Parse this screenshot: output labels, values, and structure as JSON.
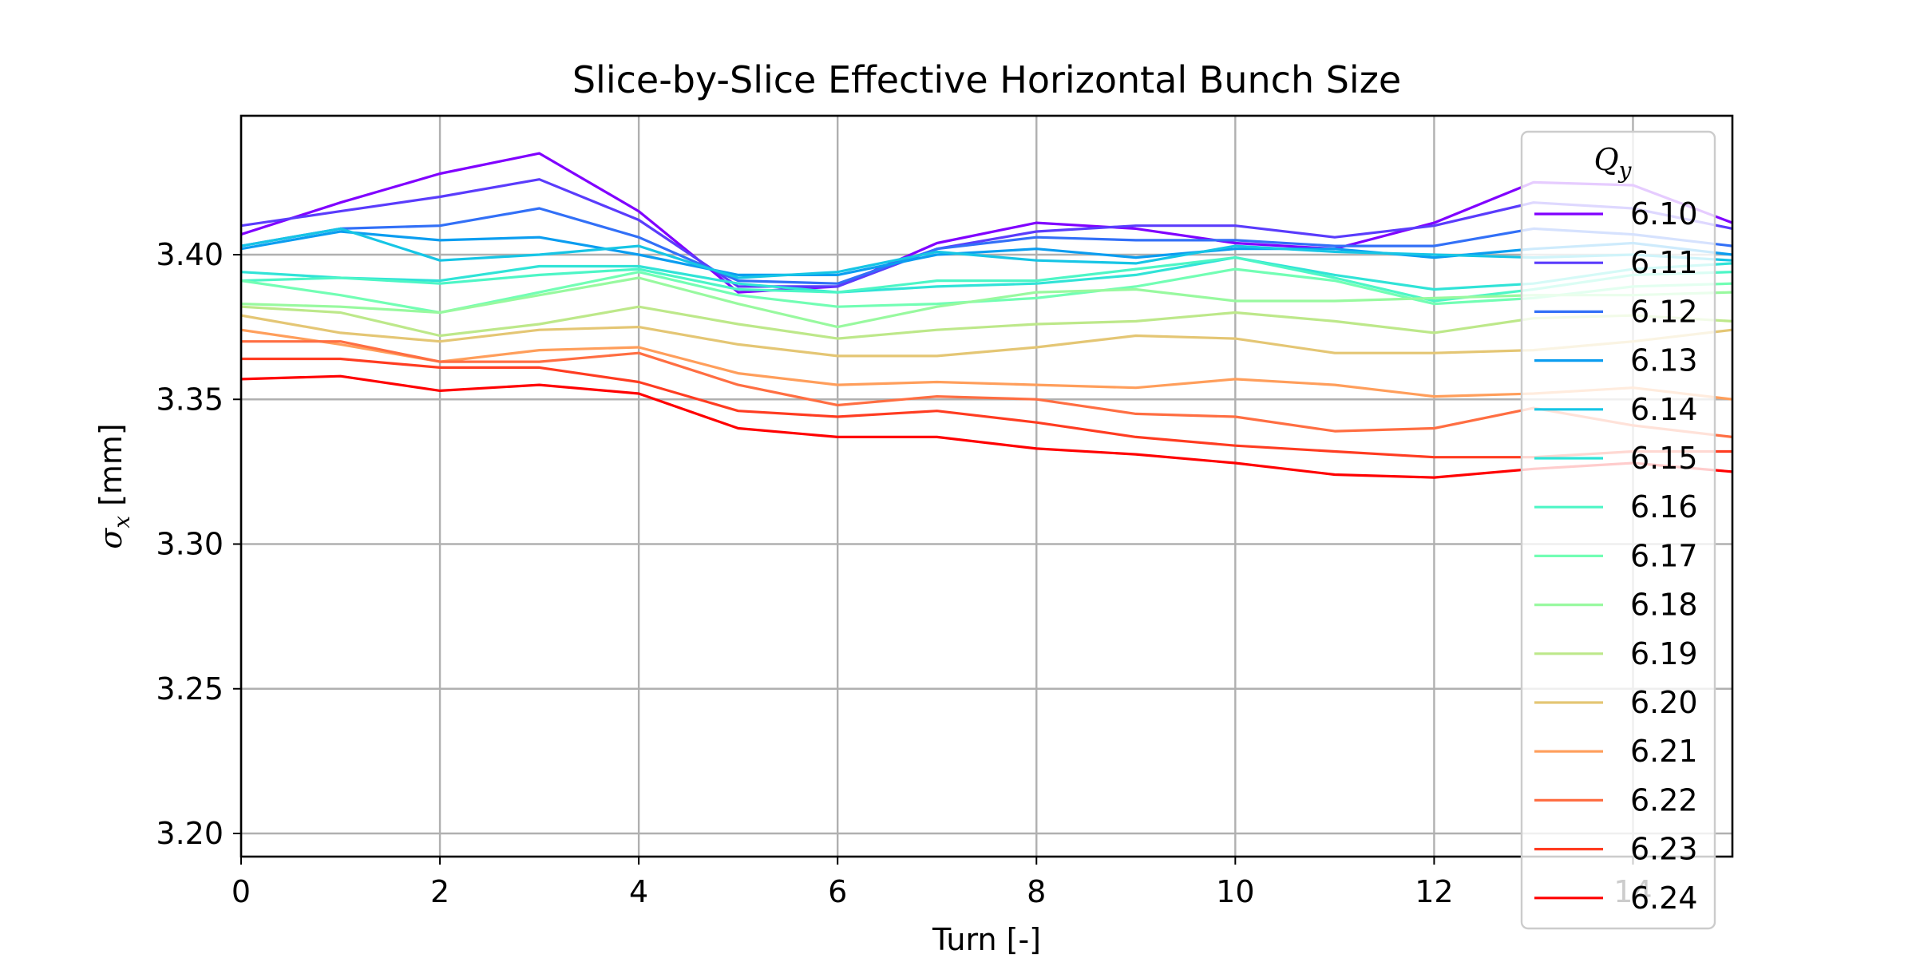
{
  "chart_data": {
    "type": "line",
    "title": "Slice-by-Slice Effective Horizontal Bunch Size",
    "xlabel": "Turn [-]",
    "ylabel": "σ",
    "ylabel_sub": "x",
    "ylabel_unit": " [mm]",
    "xlim": [
      0,
      15
    ],
    "ylim": [
      3.192,
      3.448
    ],
    "x_ticks": [
      0,
      2,
      4,
      6,
      8,
      10,
      12,
      14
    ],
    "x_tick_labels": [
      "0",
      "2",
      "4",
      "6",
      "8",
      "10",
      "12",
      "14"
    ],
    "y_ticks": [
      3.2,
      3.25,
      3.3,
      3.35,
      3.4
    ],
    "y_tick_labels": [
      "3.20",
      "3.25",
      "3.30",
      "3.35",
      "3.40"
    ],
    "grid": true,
    "legend_title": "Q",
    "legend_title_sub": "y",
    "legend_position": "right",
    "x": [
      0,
      1,
      2,
      3,
      4,
      5,
      6,
      7,
      8,
      9,
      10,
      11,
      12,
      13,
      14,
      15
    ],
    "series": [
      {
        "name": "6.10",
        "color": "#8000ff",
        "values": [
          3.407,
          3.418,
          3.428,
          3.435,
          3.415,
          3.387,
          3.389,
          3.404,
          3.411,
          3.409,
          3.404,
          3.402,
          3.411,
          3.425,
          3.424,
          3.411
        ]
      },
      {
        "name": "6.11",
        "color": "#5a3cfc",
        "values": [
          3.41,
          3.415,
          3.42,
          3.426,
          3.412,
          3.389,
          3.389,
          3.402,
          3.408,
          3.41,
          3.41,
          3.406,
          3.41,
          3.418,
          3.416,
          3.409
        ]
      },
      {
        "name": "6.12",
        "color": "#3270f7",
        "values": [
          3.403,
          3.409,
          3.41,
          3.416,
          3.406,
          3.391,
          3.39,
          3.402,
          3.406,
          3.405,
          3.405,
          3.403,
          3.403,
          3.409,
          3.407,
          3.403
        ]
      },
      {
        "name": "6.13",
        "color": "#0b9df0",
        "values": [
          3.402,
          3.408,
          3.405,
          3.406,
          3.4,
          3.393,
          3.393,
          3.4,
          3.402,
          3.399,
          3.402,
          3.402,
          3.399,
          3.402,
          3.404,
          3.4
        ]
      },
      {
        "name": "6.14",
        "color": "#16c5e5",
        "values": [
          3.403,
          3.409,
          3.398,
          3.4,
          3.403,
          3.392,
          3.394,
          3.401,
          3.398,
          3.397,
          3.403,
          3.401,
          3.4,
          3.399,
          3.4,
          3.398
        ]
      },
      {
        "name": "6.15",
        "color": "#30e3d7",
        "values": [
          3.394,
          3.392,
          3.391,
          3.396,
          3.396,
          3.39,
          3.387,
          3.389,
          3.39,
          3.393,
          3.399,
          3.393,
          3.388,
          3.39,
          3.395,
          3.397
        ]
      },
      {
        "name": "6.16",
        "color": "#4df6c6",
        "values": [
          3.391,
          3.392,
          3.39,
          3.393,
          3.395,
          3.388,
          3.387,
          3.391,
          3.391,
          3.395,
          3.399,
          3.392,
          3.384,
          3.388,
          3.393,
          3.394
        ]
      },
      {
        "name": "6.17",
        "color": "#72feb4",
        "values": [
          3.391,
          3.386,
          3.38,
          3.387,
          3.394,
          3.386,
          3.382,
          3.383,
          3.385,
          3.389,
          3.395,
          3.391,
          3.383,
          3.385,
          3.389,
          3.39
        ]
      },
      {
        "name": "6.18",
        "color": "#98f99f",
        "values": [
          3.383,
          3.382,
          3.38,
          3.386,
          3.392,
          3.383,
          3.375,
          3.382,
          3.387,
          3.388,
          3.384,
          3.384,
          3.385,
          3.386,
          3.386,
          3.387
        ]
      },
      {
        "name": "6.19",
        "color": "#bde88a",
        "values": [
          3.382,
          3.38,
          3.372,
          3.376,
          3.382,
          3.376,
          3.371,
          3.374,
          3.376,
          3.377,
          3.38,
          3.377,
          3.373,
          3.378,
          3.379,
          3.377
        ]
      },
      {
        "name": "6.20",
        "color": "#e4c674",
        "values": [
          3.379,
          3.373,
          3.37,
          3.374,
          3.375,
          3.369,
          3.365,
          3.365,
          3.368,
          3.372,
          3.371,
          3.366,
          3.366,
          3.367,
          3.37,
          3.374
        ]
      },
      {
        "name": "6.21",
        "color": "#ff9e5b",
        "values": [
          3.374,
          3.369,
          3.363,
          3.367,
          3.368,
          3.359,
          3.355,
          3.356,
          3.355,
          3.354,
          3.357,
          3.355,
          3.351,
          3.352,
          3.354,
          3.35
        ]
      },
      {
        "name": "6.22",
        "color": "#ff6e42",
        "values": [
          3.37,
          3.37,
          3.363,
          3.363,
          3.366,
          3.355,
          3.348,
          3.351,
          3.35,
          3.345,
          3.344,
          3.339,
          3.34,
          3.347,
          3.341,
          3.337
        ]
      },
      {
        "name": "6.23",
        "color": "#ff3c21",
        "values": [
          3.364,
          3.364,
          3.361,
          3.361,
          3.356,
          3.346,
          3.344,
          3.346,
          3.342,
          3.337,
          3.334,
          3.332,
          3.33,
          3.33,
          3.332,
          3.332
        ]
      },
      {
        "name": "6.24",
        "color": "#ff0000",
        "values": [
          3.357,
          3.358,
          3.353,
          3.355,
          3.352,
          3.34,
          3.337,
          3.337,
          3.333,
          3.331,
          3.328,
          3.324,
          3.323,
          3.326,
          3.328,
          3.325
        ]
      }
    ]
  }
}
